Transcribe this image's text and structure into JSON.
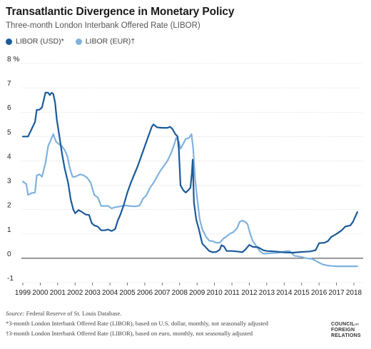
{
  "title": "Transatlantic Divergence in Monetary Policy",
  "subtitle": "Three-month London Interbank Offered Rate (LIBOR)",
  "colors": {
    "usd": "#1c5a9a",
    "eur": "#7fb2df",
    "grid": "#d9d9d9",
    "zero": "#333333"
  },
  "source_label": "Source:",
  "source_text": "Federal Reserve of St. Louis Database.",
  "note_usd": "*3-month London Interbank Offered Rate (LIBOR), based on U.S. dollar, monthly, not seasonally adjusted",
  "note_eur": "†3-month London Interbank Offered Rate (LIBOR), based on euro, monthly, not seasonally adjusted",
  "logo": {
    "line1": "COUNCIL",
    "line1_sub": "on",
    "line2": "FOREIGN",
    "line3": "RELATIONS"
  },
  "chart_data": {
    "type": "line",
    "title": "Transatlantic Divergence in Monetary Policy",
    "subtitle": "Three-month London Interbank Offered Rate (LIBOR)",
    "xlabel": "",
    "ylabel": "",
    "xlim": [
      1999,
      2018
    ],
    "ylim": [
      -1,
      8
    ],
    "y_ticks": [
      -1,
      0,
      1,
      2,
      3,
      4,
      5,
      6,
      7,
      8
    ],
    "y_tick_labels": [
      "-1",
      "0",
      "1",
      "2",
      "3",
      "4",
      "5",
      "6",
      "7",
      "8 %"
    ],
    "x_ticks": [
      1999,
      2000,
      2001,
      2002,
      2003,
      2004,
      2005,
      2006,
      2007,
      2008,
      2009,
      2010,
      2011,
      2012,
      2013,
      2014,
      2015,
      2016,
      2017,
      2018
    ],
    "x_tick_labels": [
      "1999",
      "2000",
      "2001",
      "2002",
      "2003",
      "2004",
      "2005",
      "2006",
      "2007",
      "2008",
      "2009",
      "2010",
      "2011",
      "2012",
      "2013",
      "2014",
      "2015",
      "2016",
      "2017",
      "2018"
    ],
    "grid": true,
    "legend_position": "top-left",
    "series": [
      {
        "name": "LIBOR (USD)*",
        "points": [
          [
            1999.0,
            5.0
          ],
          [
            1999.3,
            5.0
          ],
          [
            1999.5,
            5.3
          ],
          [
            1999.7,
            5.6
          ],
          [
            1999.8,
            6.1
          ],
          [
            1999.95,
            6.1
          ],
          [
            2000.1,
            6.2
          ],
          [
            2000.3,
            6.8
          ],
          [
            2000.45,
            6.8
          ],
          [
            2000.55,
            6.7
          ],
          [
            2000.65,
            6.8
          ],
          [
            2000.75,
            6.75
          ],
          [
            2000.85,
            6.4
          ],
          [
            2000.95,
            5.7
          ],
          [
            2001.1,
            5.0
          ],
          [
            2001.25,
            4.3
          ],
          [
            2001.4,
            3.7
          ],
          [
            2001.6,
            3.1
          ],
          [
            2001.75,
            2.4
          ],
          [
            2001.9,
            2.0
          ],
          [
            2002.0,
            1.85
          ],
          [
            2002.2,
            1.98
          ],
          [
            2002.4,
            1.9
          ],
          [
            2002.6,
            1.8
          ],
          [
            2002.8,
            1.78
          ],
          [
            2002.95,
            1.45
          ],
          [
            2003.1,
            1.35
          ],
          [
            2003.3,
            1.3
          ],
          [
            2003.5,
            1.15
          ],
          [
            2003.7,
            1.15
          ],
          [
            2003.9,
            1.18
          ],
          [
            2004.1,
            1.12
          ],
          [
            2004.3,
            1.2
          ],
          [
            2004.45,
            1.55
          ],
          [
            2004.6,
            1.8
          ],
          [
            2004.8,
            2.2
          ],
          [
            2005.0,
            2.7
          ],
          [
            2005.2,
            3.1
          ],
          [
            2005.4,
            3.45
          ],
          [
            2005.6,
            3.8
          ],
          [
            2005.8,
            4.2
          ],
          [
            2006.0,
            4.6
          ],
          [
            2006.2,
            5.0
          ],
          [
            2006.4,
            5.4
          ],
          [
            2006.5,
            5.5
          ],
          [
            2006.7,
            5.38
          ],
          [
            2007.0,
            5.36
          ],
          [
            2007.3,
            5.36
          ],
          [
            2007.45,
            5.4
          ],
          [
            2007.6,
            5.3
          ],
          [
            2007.75,
            5.1
          ],
          [
            2007.88,
            5.0
          ],
          [
            2007.95,
            4.5
          ],
          [
            2008.05,
            3.0
          ],
          [
            2008.2,
            2.8
          ],
          [
            2008.35,
            2.7
          ],
          [
            2008.5,
            2.8
          ],
          [
            2008.62,
            2.9
          ],
          [
            2008.7,
            3.5
          ],
          [
            2008.75,
            4.05
          ],
          [
            2008.82,
            2.3
          ],
          [
            2008.95,
            1.6
          ],
          [
            2009.1,
            1.2
          ],
          [
            2009.3,
            0.6
          ],
          [
            2009.5,
            0.45
          ],
          [
            2009.7,
            0.3
          ],
          [
            2009.9,
            0.25
          ],
          [
            2010.1,
            0.26
          ],
          [
            2010.3,
            0.35
          ],
          [
            2010.4,
            0.54
          ],
          [
            2010.55,
            0.48
          ],
          [
            2010.7,
            0.3
          ],
          [
            2011.0,
            0.3
          ],
          [
            2011.3,
            0.28
          ],
          [
            2011.6,
            0.25
          ],
          [
            2011.8,
            0.38
          ],
          [
            2012.0,
            0.55
          ],
          [
            2012.2,
            0.47
          ],
          [
            2012.5,
            0.45
          ],
          [
            2012.8,
            0.33
          ],
          [
            2013.0,
            0.3
          ],
          [
            2013.5,
            0.28
          ],
          [
            2014.0,
            0.24
          ],
          [
            2014.5,
            0.23
          ],
          [
            2015.0,
            0.26
          ],
          [
            2015.5,
            0.28
          ],
          [
            2015.8,
            0.33
          ],
          [
            2016.0,
            0.62
          ],
          [
            2016.3,
            0.64
          ],
          [
            2016.5,
            0.7
          ],
          [
            2016.7,
            0.88
          ],
          [
            2017.0,
            1.0
          ],
          [
            2017.3,
            1.15
          ],
          [
            2017.5,
            1.3
          ],
          [
            2017.8,
            1.35
          ],
          [
            2017.95,
            1.5
          ],
          [
            2018.2,
            1.9
          ]
        ]
      },
      {
        "name": "LIBOR (EUR)†",
        "points": [
          [
            1999.0,
            3.15
          ],
          [
            1999.2,
            3.05
          ],
          [
            1999.3,
            2.6
          ],
          [
            1999.5,
            2.68
          ],
          [
            1999.7,
            2.7
          ],
          [
            1999.8,
            3.4
          ],
          [
            1999.95,
            3.45
          ],
          [
            2000.1,
            3.35
          ],
          [
            2000.3,
            3.9
          ],
          [
            2000.45,
            4.6
          ],
          [
            2000.6,
            4.85
          ],
          [
            2000.75,
            5.1
          ],
          [
            2000.9,
            4.8
          ],
          [
            2001.05,
            4.7
          ],
          [
            2001.25,
            4.6
          ],
          [
            2001.4,
            4.45
          ],
          [
            2001.55,
            4.2
          ],
          [
            2001.7,
            3.7
          ],
          [
            2001.85,
            3.35
          ],
          [
            2002.0,
            3.35
          ],
          [
            2002.3,
            3.45
          ],
          [
            2002.5,
            3.4
          ],
          [
            2002.7,
            3.3
          ],
          [
            2002.9,
            3.1
          ],
          [
            2003.1,
            2.6
          ],
          [
            2003.3,
            2.5
          ],
          [
            2003.5,
            2.15
          ],
          [
            2003.7,
            2.15
          ],
          [
            2003.9,
            2.15
          ],
          [
            2004.1,
            2.05
          ],
          [
            2004.3,
            2.1
          ],
          [
            2004.5,
            2.12
          ],
          [
            2004.7,
            2.15
          ],
          [
            2004.9,
            2.17
          ],
          [
            2005.2,
            2.14
          ],
          [
            2005.5,
            2.13
          ],
          [
            2005.7,
            2.17
          ],
          [
            2005.9,
            2.45
          ],
          [
            2006.1,
            2.6
          ],
          [
            2006.3,
            2.9
          ],
          [
            2006.5,
            3.1
          ],
          [
            2006.7,
            3.35
          ],
          [
            2006.9,
            3.6
          ],
          [
            2007.1,
            3.8
          ],
          [
            2007.3,
            4.0
          ],
          [
            2007.5,
            4.3
          ],
          [
            2007.7,
            4.7
          ],
          [
            2007.8,
            4.95
          ],
          [
            2007.95,
            4.8
          ],
          [
            2008.05,
            4.5
          ],
          [
            2008.2,
            4.7
          ],
          [
            2008.35,
            4.9
          ],
          [
            2008.55,
            4.95
          ],
          [
            2008.68,
            5.1
          ],
          [
            2008.78,
            4.5
          ],
          [
            2008.88,
            3.3
          ],
          [
            2009.0,
            2.5
          ],
          [
            2009.15,
            1.6
          ],
          [
            2009.3,
            1.2
          ],
          [
            2009.5,
            0.9
          ],
          [
            2009.7,
            0.72
          ],
          [
            2009.9,
            0.7
          ],
          [
            2010.1,
            0.64
          ],
          [
            2010.3,
            0.64
          ],
          [
            2010.5,
            0.8
          ],
          [
            2010.7,
            0.9
          ],
          [
            2010.9,
            1.02
          ],
          [
            2011.1,
            1.08
          ],
          [
            2011.3,
            1.25
          ],
          [
            2011.45,
            1.5
          ],
          [
            2011.6,
            1.55
          ],
          [
            2011.75,
            1.5
          ],
          [
            2011.9,
            1.4
          ],
          [
            2012.05,
            1.0
          ],
          [
            2012.2,
            0.7
          ],
          [
            2012.4,
            0.5
          ],
          [
            2012.6,
            0.3
          ],
          [
            2012.8,
            0.19
          ],
          [
            2013.0,
            0.2
          ],
          [
            2013.3,
            0.21
          ],
          [
            2013.6,
            0.22
          ],
          [
            2013.9,
            0.26
          ],
          [
            2014.1,
            0.29
          ],
          [
            2014.3,
            0.3
          ],
          [
            2014.45,
            0.2
          ],
          [
            2014.6,
            0.1
          ],
          [
            2014.8,
            0.08
          ],
          [
            2015.0,
            0.05
          ],
          [
            2015.3,
            0.0
          ],
          [
            2015.6,
            -0.03
          ],
          [
            2015.8,
            -0.1
          ],
          [
            2016.0,
            -0.18
          ],
          [
            2016.2,
            -0.25
          ],
          [
            2016.5,
            -0.3
          ],
          [
            2016.8,
            -0.32
          ],
          [
            2017.0,
            -0.33
          ],
          [
            2017.3,
            -0.33
          ],
          [
            2017.6,
            -0.33
          ],
          [
            2017.9,
            -0.33
          ],
          [
            2018.2,
            -0.33
          ]
        ]
      }
    ]
  }
}
